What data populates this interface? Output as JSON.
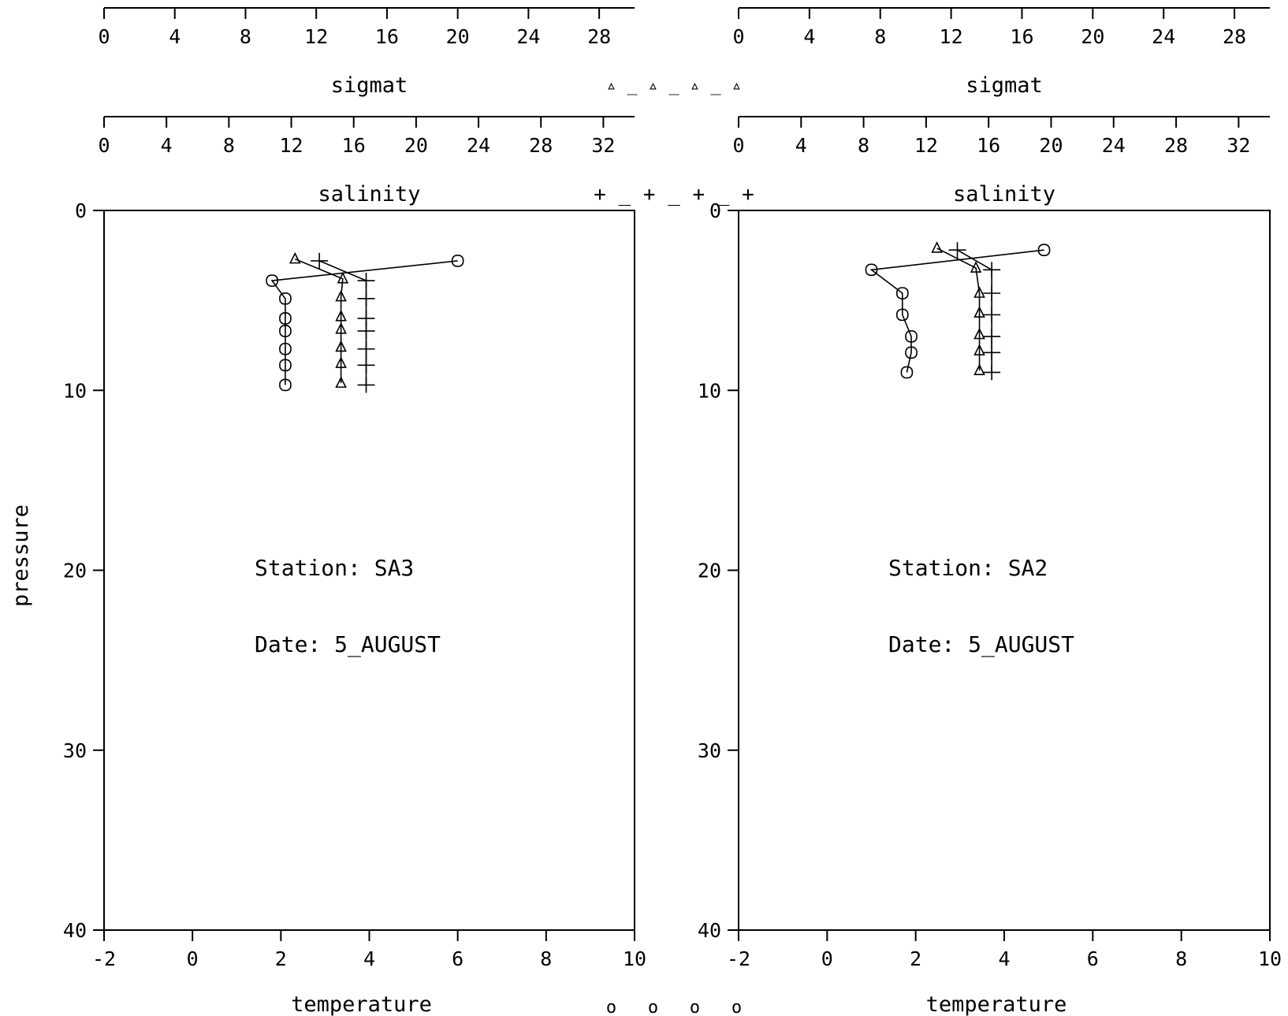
{
  "chart_data": [
    {
      "type": "line",
      "station_label": "Station:  SA3",
      "date_label": "Date: 5_AUGUST",
      "y_axis": {
        "label": "pressure",
        "range": [
          0,
          40
        ],
        "reversed": true,
        "ticks": [
          "0",
          "10",
          "20",
          "30",
          "40"
        ]
      },
      "x_axes": {
        "temperature": {
          "label": "temperature",
          "range": [
            -2,
            10
          ],
          "ticks": [
            "-2",
            "0",
            "2",
            "4",
            "6",
            "8",
            "10"
          ]
        },
        "salinity": {
          "label": "salinity",
          "range": [
            0,
            34
          ],
          "ticks": [
            "0",
            "4",
            "8",
            "12",
            "16",
            "20",
            "24",
            "28",
            "32"
          ]
        },
        "sigmat": {
          "label": "sigmat",
          "range": [
            0,
            30
          ],
          "ticks": [
            "0",
            "4",
            "8",
            "12",
            "16",
            "20",
            "24",
            "28"
          ]
        }
      },
      "series": [
        {
          "name": "temperature",
          "marker": "circle",
          "x": [
            6.0,
            1.8,
            2.1,
            2.1,
            2.1,
            2.1,
            2.1,
            2.1
          ],
          "y": [
            2.8,
            3.9,
            4.9,
            6.0,
            6.7,
            7.7,
            8.6,
            9.7
          ]
        },
        {
          "name": "salinity",
          "marker": "plus",
          "x": [
            13.8,
            16.8,
            16.8,
            16.8,
            16.8,
            16.8,
            16.8,
            16.8
          ],
          "y": [
            2.8,
            3.9,
            4.9,
            6.0,
            6.7,
            7.7,
            8.6,
            9.7
          ]
        },
        {
          "name": "sigmat",
          "marker": "triangle",
          "x": [
            10.8,
            13.5,
            13.4,
            13.4,
            13.4,
            13.4,
            13.4,
            13.4
          ],
          "y": [
            2.7,
            3.8,
            4.8,
            5.9,
            6.6,
            7.6,
            8.5,
            9.6
          ]
        }
      ]
    },
    {
      "type": "line",
      "station_label": "Station:  SA2",
      "date_label": "Date: 5_AUGUST",
      "y_axis": {
        "label": "",
        "range": [
          0,
          40
        ],
        "reversed": true,
        "ticks": [
          "0",
          "10",
          "20",
          "30",
          "40"
        ]
      },
      "x_axes": {
        "temperature": {
          "label": "temperature",
          "range": [
            -2,
            10
          ],
          "ticks": [
            "-2",
            "0",
            "2",
            "4",
            "6",
            "8",
            "10"
          ]
        },
        "salinity": {
          "label": "salinity",
          "range": [
            0,
            34
          ],
          "ticks": [
            "0",
            "4",
            "8",
            "12",
            "16",
            "20",
            "24",
            "28",
            "32"
          ]
        },
        "sigmat": {
          "label": "sigmat",
          "range": [
            0,
            30
          ],
          "ticks": [
            "0",
            "4",
            "8",
            "12",
            "16",
            "20",
            "24",
            "28"
          ]
        }
      },
      "series": [
        {
          "name": "temperature",
          "marker": "circle",
          "x": [
            4.9,
            1.0,
            1.7,
            1.7,
            1.9,
            1.9,
            1.8
          ],
          "y": [
            2.2,
            3.3,
            4.6,
            5.8,
            7.0,
            7.9,
            9.0
          ]
        },
        {
          "name": "salinity",
          "marker": "plus",
          "x": [
            14.0,
            16.2,
            16.2,
            16.2,
            16.2,
            16.2,
            16.2
          ],
          "y": [
            2.2,
            3.3,
            4.6,
            5.8,
            7.0,
            7.9,
            9.0
          ]
        },
        {
          "name": "sigmat",
          "marker": "triangle",
          "x": [
            11.2,
            13.4,
            13.6,
            13.6,
            13.6,
            13.6,
            13.6
          ],
          "y": [
            2.1,
            3.2,
            4.6,
            5.7,
            6.9,
            7.8,
            8.9
          ]
        }
      ]
    }
  ],
  "legend": {
    "sigmat": "▵ _ ▵ _ ▵ _ ▵",
    "salinity": "+ _ + _ + _ +",
    "temperature": "o _ o _ o _ o"
  }
}
